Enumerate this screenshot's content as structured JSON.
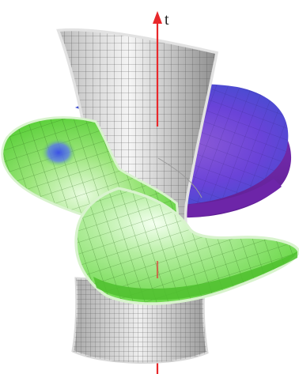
{
  "axis": {
    "label": "t",
    "color": "#e8282b"
  },
  "colors": {
    "green": "#5fd43c",
    "green_light": "#c6f5b3",
    "violet": "#6a3fd6",
    "violet_deep": "#7a2fb8",
    "blue": "#3d5fe0",
    "gray": "#9a9a9a",
    "gray_light": "#e6e6e6"
  }
}
